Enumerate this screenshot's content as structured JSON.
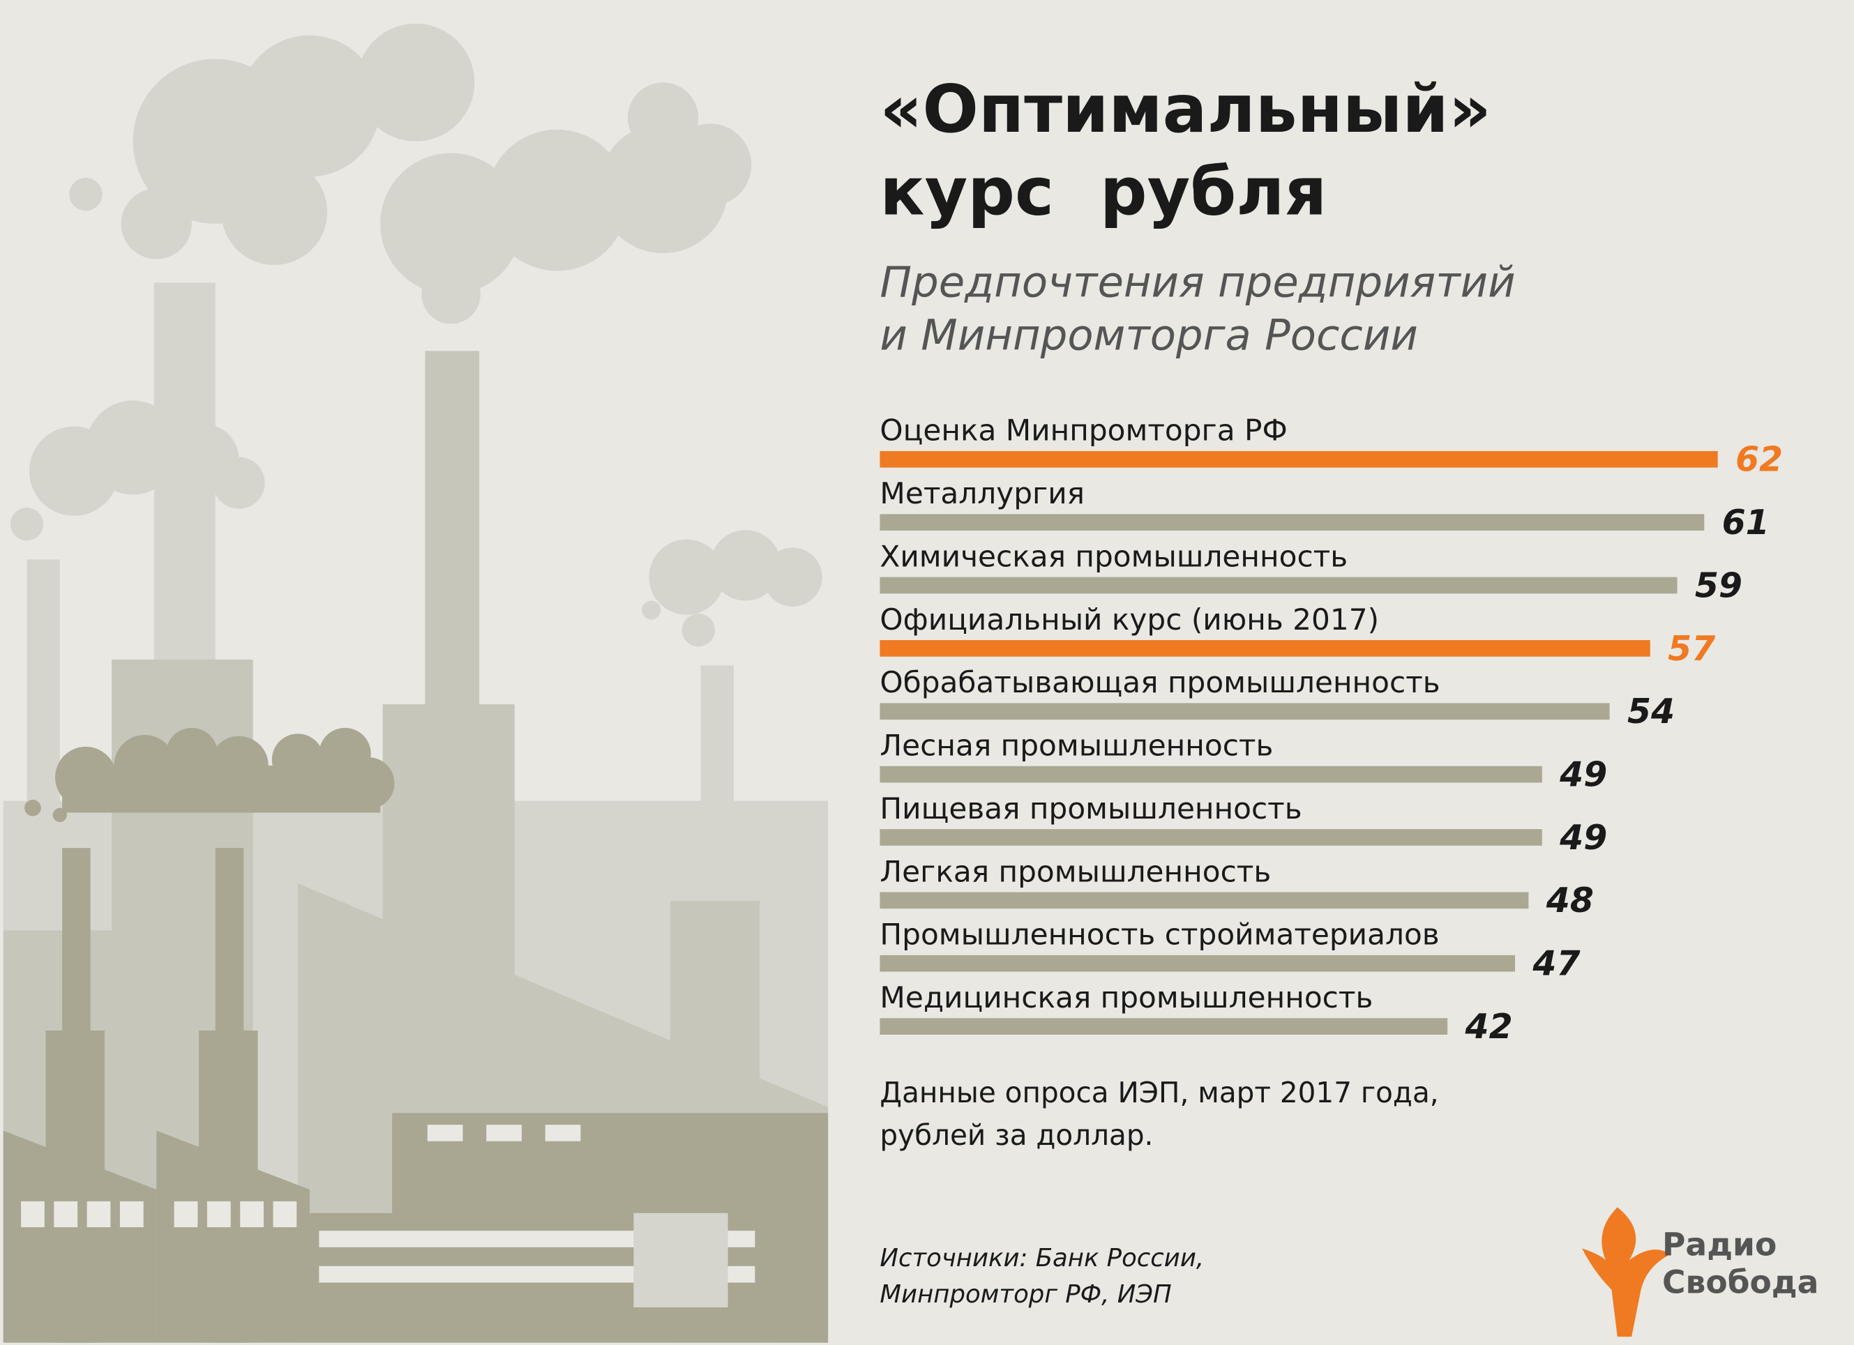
{
  "chart_data": {
    "type": "bar",
    "title": [
      "«Оптимальный»",
      "курс  рубля"
    ],
    "subtitle": [
      "Предпочтения предприятий",
      "и Минпромторга России"
    ],
    "categories": [
      "Оценка Минпромторга РФ",
      "Металлургия",
      "Химическая промышленность",
      "Официальный курс (июнь 2017)",
      "Обрабатывающая промышленность",
      "Лесная промышленность",
      "Пищевая промышленность",
      "Легкая промышленность",
      "Промышленность стройматериалов",
      "Медицинская промышленность"
    ],
    "values": [
      62,
      61,
      59,
      57,
      54,
      49,
      49,
      48,
      47,
      42
    ],
    "colors": [
      "#f07a22",
      "#aaa793",
      "#aaa793",
      "#f07a22",
      "#aaa793",
      "#aaa793",
      "#aaa793",
      "#aaa793",
      "#aaa793",
      "#aaa793"
    ],
    "label_colors": [
      "#f07a22",
      "#1a1a1a",
      "#1a1a1a",
      "#f07a22",
      "#1a1a1a",
      "#1a1a1a",
      "#1a1a1a",
      "#1a1a1a",
      "#1a1a1a",
      "#1a1a1a"
    ],
    "note": [
      "Данные опроса ИЭП, март 2017 года,",
      "рублей за доллар."
    ],
    "source": [
      "Источники: Банк России,",
      "Минпромторг РФ, ИЭП"
    ],
    "logo": [
      "Радио",
      "Свобода"
    ]
  }
}
